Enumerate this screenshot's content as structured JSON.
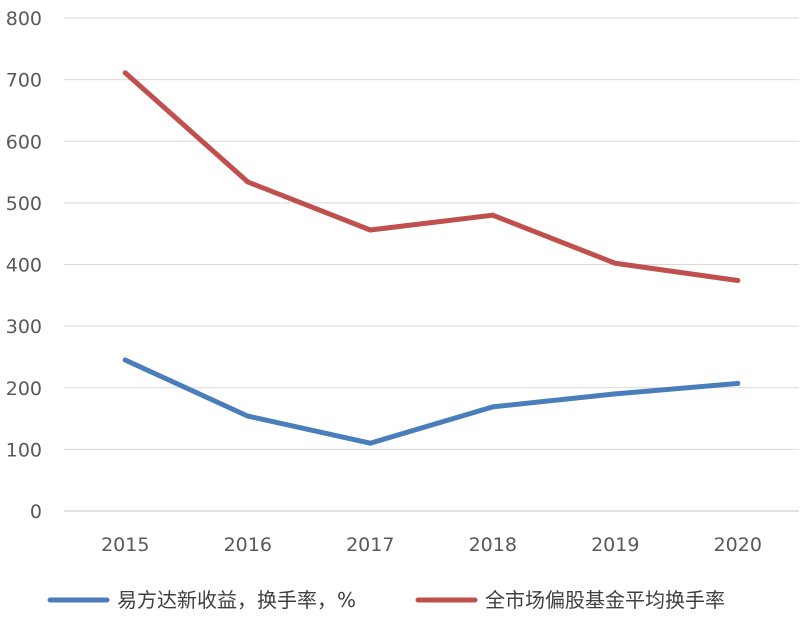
{
  "chart_data": {
    "type": "line",
    "categories": [
      "2015",
      "2016",
      "2017",
      "2018",
      "2019",
      "2020"
    ],
    "series": [
      {
        "name": "易方达新收益，换手率，%",
        "color": "#4a7ebb",
        "values": [
          245,
          154,
          110,
          169,
          190,
          207
        ]
      },
      {
        "name": "全市场偏股基金平均换手率",
        "color": "#c0504d",
        "values": [
          711,
          534,
          456,
          480,
          402,
          374
        ]
      }
    ],
    "y_ticks": [
      "0",
      "100",
      "200",
      "300",
      "400",
      "500",
      "600",
      "700",
      "800"
    ],
    "ylim": [
      0,
      800
    ],
    "title": "",
    "xlabel": "",
    "ylabel": "",
    "grid": true,
    "legend_position": "bottom"
  }
}
